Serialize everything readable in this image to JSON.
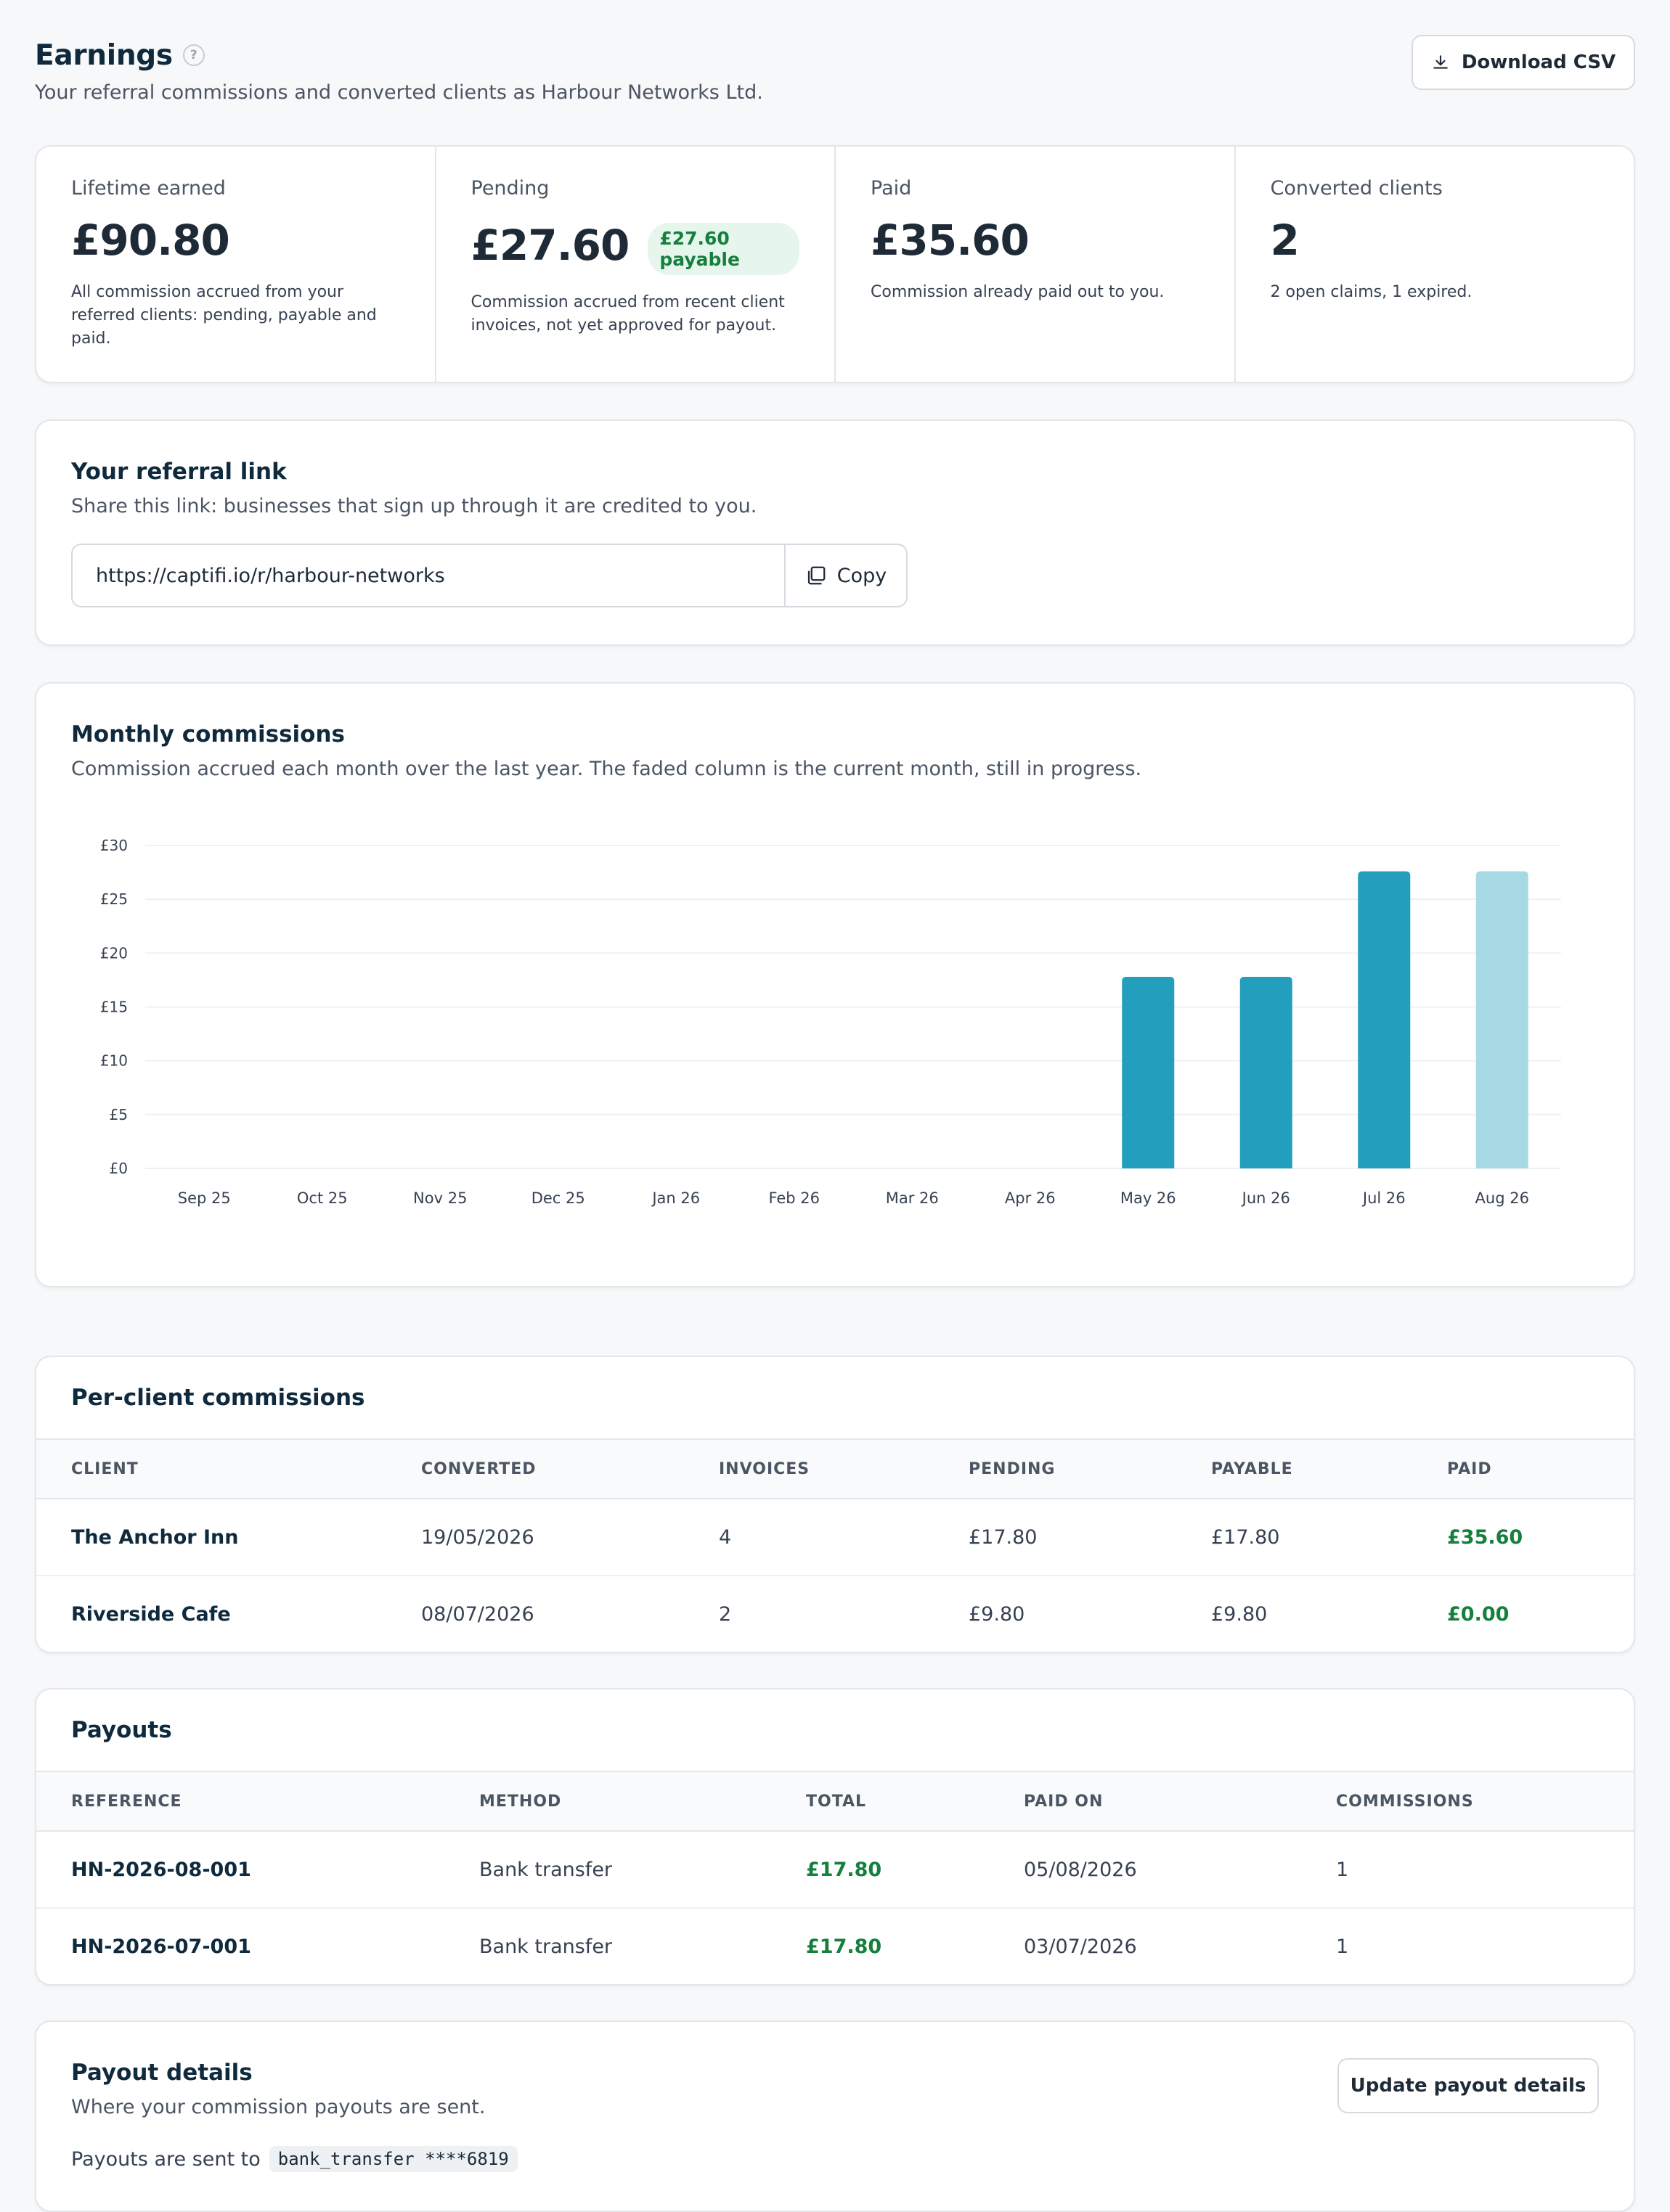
{
  "header": {
    "title": "Earnings",
    "help": "?",
    "subtitle": "Your referral commissions and converted clients as Harbour Networks Ltd.",
    "download_label": "Download CSV"
  },
  "stats": [
    {
      "label": "Lifetime earned",
      "value": "£90.80",
      "badge": "",
      "desc": "All commission accrued from your referred clients: pending, payable and paid."
    },
    {
      "label": "Pending",
      "value": "£27.60",
      "badge": "£27.60 payable",
      "desc": "Commission accrued from recent client invoices, not yet approved for payout."
    },
    {
      "label": "Paid",
      "value": "£35.60",
      "badge": "",
      "desc": "Commission already paid out to you."
    },
    {
      "label": "Converted clients",
      "value": "2",
      "badge": "",
      "desc": "2 open claims, 1 expired."
    }
  ],
  "referral": {
    "title": "Your referral link",
    "subtitle": "Share this link: businesses that sign up through it are credited to you.",
    "link": "https://captifi.io/r/harbour-networks",
    "copy_label": "Copy"
  },
  "chart_card": {
    "title": "Monthly commissions",
    "subtitle": "Commission accrued each month over the last year. The faded column is the current month, still in progress."
  },
  "chart_data": {
    "type": "bar",
    "categories": [
      "Sep 25",
      "Oct 25",
      "Nov 25",
      "Dec 25",
      "Jan 26",
      "Feb 26",
      "Mar 26",
      "Apr 26",
      "May 26",
      "Jun 26",
      "Jul 26",
      "Aug 26"
    ],
    "values": [
      0,
      0,
      0,
      0,
      0,
      0,
      0,
      0,
      17.8,
      17.8,
      27.6,
      27.6
    ],
    "current_index": 11,
    "ylim": [
      0,
      30
    ],
    "yticks": [
      0,
      5,
      10,
      15,
      20,
      25,
      30
    ],
    "ytick_labels": [
      "£0",
      "£5",
      "£10",
      "£15",
      "£20",
      "£25",
      "£30"
    ],
    "grid": true,
    "bar_color": "#239fbd",
    "current_bar_color": "#a7d9e4"
  },
  "clients": {
    "title": "Per-client commissions",
    "columns": [
      "CLIENT",
      "CONVERTED",
      "INVOICES",
      "PENDING",
      "PAYABLE",
      "PAID"
    ],
    "rows": [
      [
        "The Anchor Inn",
        "19/05/2026",
        "4",
        "£17.80",
        "£17.80",
        "£35.60"
      ],
      [
        "Riverside Cafe",
        "08/07/2026",
        "2",
        "£9.80",
        "£9.80",
        "£0.00"
      ]
    ]
  },
  "payouts": {
    "title": "Payouts",
    "columns": [
      "REFERENCE",
      "METHOD",
      "TOTAL",
      "PAID ON",
      "COMMISSIONS"
    ],
    "rows": [
      [
        "HN-2026-08-001",
        "Bank transfer",
        "£17.80",
        "05/08/2026",
        "1"
      ],
      [
        "HN-2026-07-001",
        "Bank transfer",
        "£17.80",
        "03/07/2026",
        "1"
      ]
    ]
  },
  "payout_details": {
    "title": "Payout details",
    "subtitle": "Where your commission payouts are sent.",
    "sent_to_label": "Payouts are sent to",
    "account": "bank_transfer ****6819",
    "update_label": "Update payout details"
  },
  "icons": {
    "download": "download-icon",
    "copy": "copy-icon",
    "help": "help-circle-icon"
  }
}
